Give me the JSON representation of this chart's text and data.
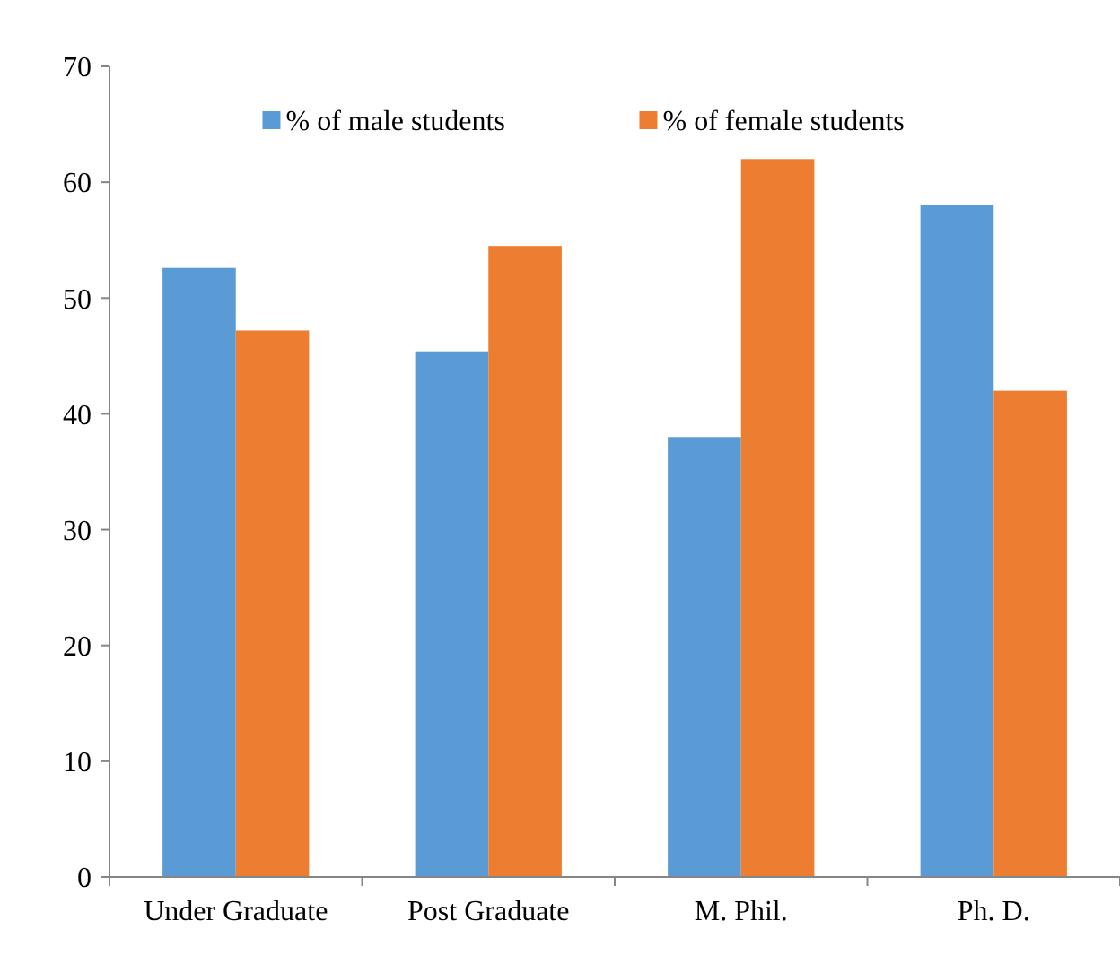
{
  "chart_data": {
    "type": "bar",
    "categories": [
      "Under Graduate",
      "Post Graduate",
      "M. Phil.",
      "Ph. D."
    ],
    "series": [
      {
        "name": "% of male students",
        "color": "#5b9bd5",
        "values": [
          52.6,
          45.4,
          38,
          58
        ]
      },
      {
        "name": "% of female students",
        "color": "#ed7d31",
        "values": [
          47.2,
          54.5,
          62,
          42
        ]
      }
    ],
    "ylim": [
      0,
      70
    ],
    "yticks": [
      0,
      10,
      20,
      30,
      40,
      50,
      60,
      70
    ],
    "grid": false,
    "legend": "top"
  }
}
